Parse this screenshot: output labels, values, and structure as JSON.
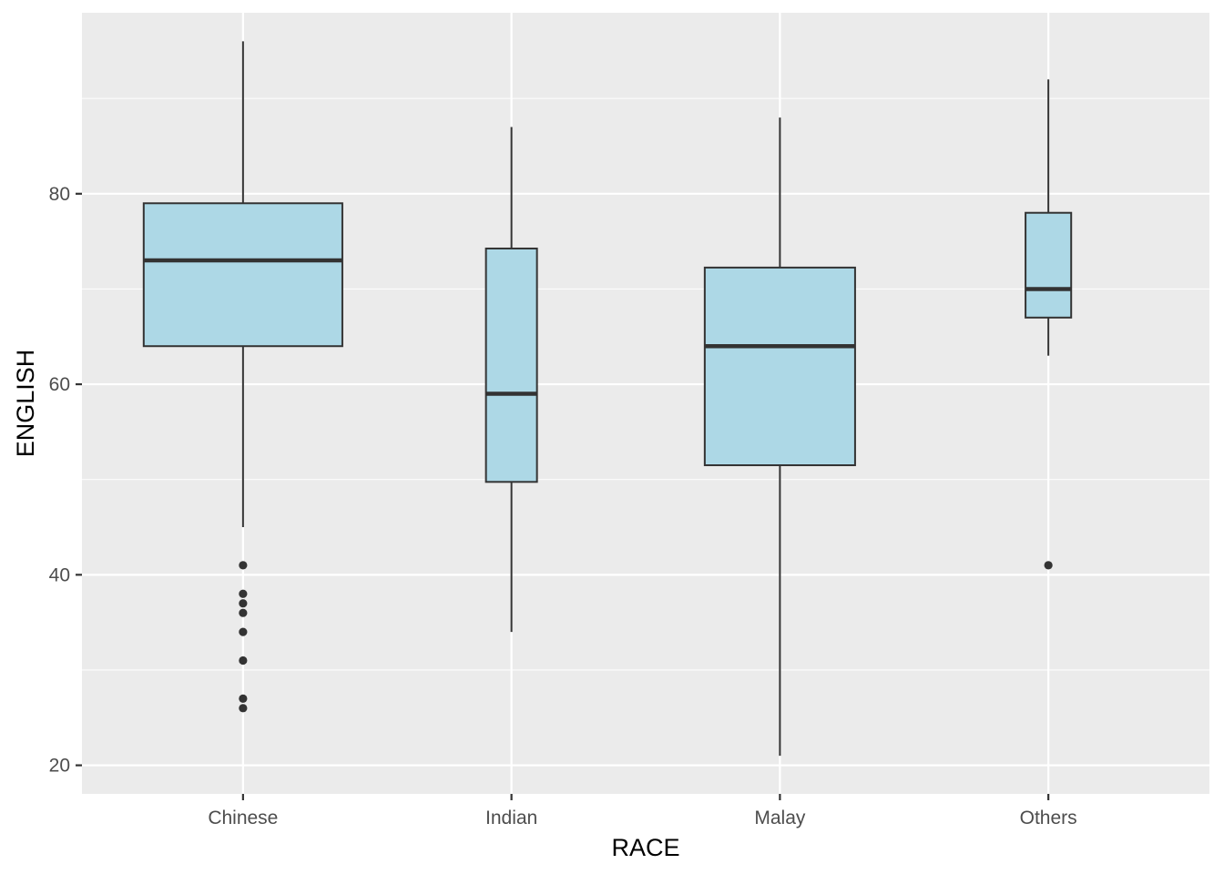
{
  "chart_data": {
    "type": "box",
    "xlabel": "RACE",
    "ylabel": "ENGLISH",
    "ylim": [
      17,
      99
    ],
    "yticks": [
      20,
      40,
      60,
      80
    ],
    "grid": true,
    "colors": {
      "panel": "#ebebeb",
      "grid_major": "#ffffff",
      "box_fill": "#add8e6",
      "box_line": "#333333"
    },
    "categories": [
      "Chinese",
      "Indian",
      "Malay",
      "Others"
    ],
    "boxes": [
      {
        "category": "Chinese",
        "whisker_low": 45,
        "q1": 64,
        "median": 73,
        "q3": 79,
        "whisker_high": 96,
        "outliers": [
          41,
          38,
          37,
          36,
          34,
          31,
          27,
          26
        ]
      },
      {
        "category": "Indian",
        "whisker_low": 34,
        "q1": 49.75,
        "median": 59,
        "q3": 74.25,
        "whisker_high": 87,
        "outliers": []
      },
      {
        "category": "Malay",
        "whisker_low": 21,
        "q1": 51.5,
        "median": 64,
        "q3": 72.25,
        "whisker_high": 88,
        "outliers": []
      },
      {
        "category": "Others",
        "whisker_low": 63,
        "q1": 67,
        "median": 70,
        "q3": 78,
        "whisker_high": 92,
        "outliers": [
          41
        ]
      }
    ]
  }
}
